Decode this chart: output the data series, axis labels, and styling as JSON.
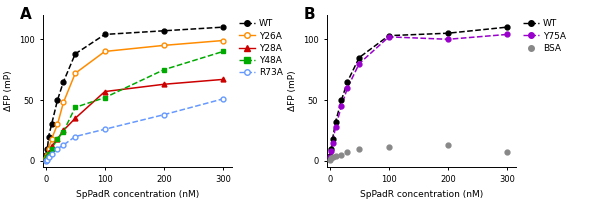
{
  "panel_A": {
    "label": "A",
    "series": [
      {
        "name": "WT",
        "color": "#000000",
        "linestyle": "dashed",
        "marker": "o",
        "markerfacecolor": "#000000",
        "x_data": [
          1,
          3,
          5,
          10,
          20,
          30,
          50,
          100,
          200,
          300
        ],
        "y_data": [
          5,
          10,
          20,
          30,
          50,
          65,
          88,
          104,
          107,
          110
        ]
      },
      {
        "name": "Y26A",
        "color": "#FF8C00",
        "linestyle": "solid",
        "marker": "o",
        "markerfacecolor": "white",
        "x_data": [
          1,
          3,
          5,
          10,
          20,
          30,
          50,
          100,
          200,
          300
        ],
        "y_data": [
          2,
          5,
          10,
          18,
          30,
          48,
          72,
          90,
          95,
          99
        ]
      },
      {
        "name": "Y28A",
        "color": "#CC0000",
        "linestyle": "solid",
        "marker": "^",
        "markerfacecolor": "#CC0000",
        "x_data": [
          1,
          3,
          5,
          10,
          20,
          30,
          50,
          100,
          200,
          300
        ],
        "y_data": [
          2,
          4,
          7,
          12,
          18,
          25,
          35,
          57,
          63,
          67
        ]
      },
      {
        "name": "Y48A",
        "color": "#00AA00",
        "linestyle": "dashed",
        "marker": "s",
        "markerfacecolor": "#00AA00",
        "x_data": [
          1,
          3,
          5,
          10,
          20,
          30,
          50,
          100,
          200,
          300
        ],
        "y_data": [
          1,
          3,
          6,
          10,
          18,
          24,
          44,
          52,
          75,
          90
        ]
      },
      {
        "name": "R73A",
        "color": "#6699FF",
        "linestyle": "dashed",
        "marker": "o",
        "markerfacecolor": "white",
        "x_data": [
          1,
          3,
          5,
          10,
          20,
          30,
          50,
          100,
          200,
          300
        ],
        "y_data": [
          0,
          1,
          3,
          6,
          10,
          13,
          20,
          26,
          38,
          51
        ]
      }
    ],
    "xlabel": "SpPadR concentration (nM)",
    "ylabel": "ΔFP (mP)",
    "yticks": [
      0,
      50,
      100
    ],
    "xticks": [
      0,
      100,
      200,
      300
    ],
    "ylim": [
      -5,
      120
    ],
    "xlim": [
      -5,
      315
    ]
  },
  "panel_B": {
    "label": "B",
    "series": [
      {
        "name": "WT",
        "color": "#000000",
        "linestyle": "dashed",
        "marker": "o",
        "markerfacecolor": "#000000",
        "x_data": [
          1,
          3,
          5,
          10,
          20,
          30,
          50,
          100,
          200,
          300
        ],
        "y_data": [
          4,
          10,
          18,
          32,
          50,
          65,
          85,
          103,
          105,
          110
        ]
      },
      {
        "name": "Y75A",
        "color": "#9900CC",
        "linestyle": "dashed",
        "marker": "o",
        "markerfacecolor": "#9900CC",
        "x_data": [
          1,
          3,
          5,
          10,
          20,
          30,
          50,
          100,
          200,
          300
        ],
        "y_data": [
          3,
          8,
          15,
          28,
          45,
          60,
          80,
          102,
          100,
          104
        ]
      },
      {
        "name": "BSA",
        "color": "#888888",
        "linestyle": "none",
        "marker": "o",
        "markerfacecolor": "#888888",
        "x_data": [
          1,
          3,
          5,
          10,
          20,
          30,
          50,
          100,
          200,
          300
        ],
        "y_data": [
          1,
          2,
          3,
          4,
          5,
          7,
          10,
          11,
          13,
          7
        ]
      }
    ],
    "xlabel": "SpPadR concentration (nM)",
    "ylabel": "ΔFP (mP)",
    "yticks": [
      0,
      50,
      100
    ],
    "xticks": [
      0,
      100,
      200,
      300
    ],
    "ylim": [
      -5,
      120
    ],
    "xlim": [
      -5,
      315
    ]
  }
}
